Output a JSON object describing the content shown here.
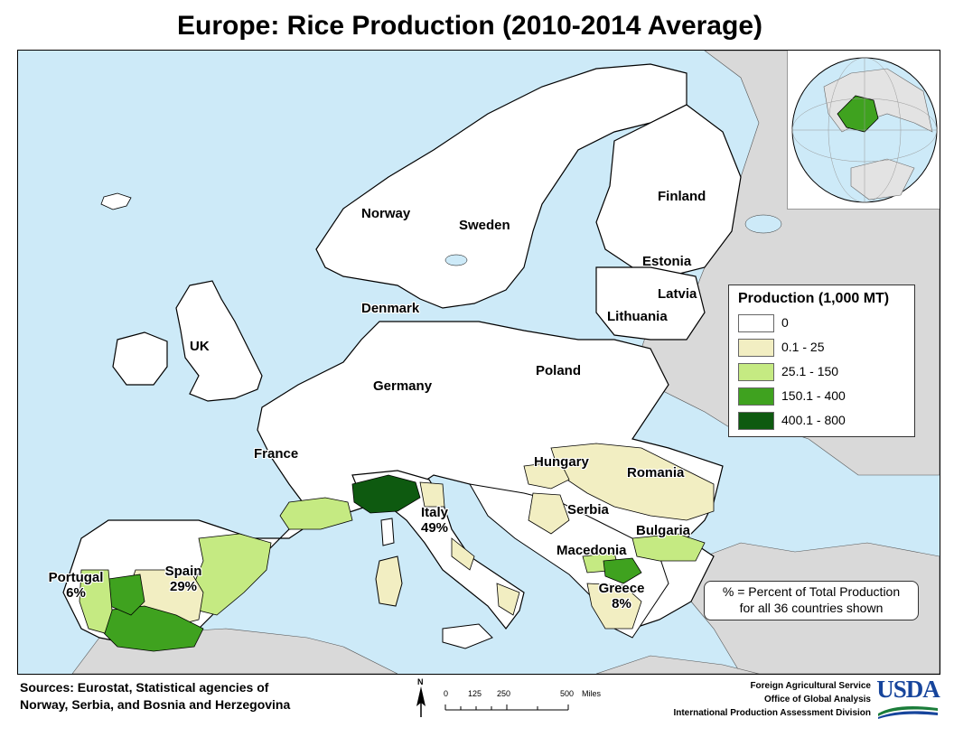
{
  "title": "Europe: Rice Production (2010-2014 Average)",
  "colors": {
    "sea": "#cdeaf8",
    "non_included_land": "#d9d9d9",
    "class_0": "#ffffff",
    "class_1": "#f2eec2",
    "class_2": "#c5ea82",
    "class_3": "#3fa21f",
    "class_4": "#0e5a10"
  },
  "legend": {
    "title": "Production (1,000 MT)",
    "classes": [
      {
        "label": "0",
        "color": "#ffffff"
      },
      {
        "label": "0.1 - 25",
        "color": "#f2eec2"
      },
      {
        "label": "25.1 - 150",
        "color": "#c5ea82"
      },
      {
        "label": "150.1 - 400",
        "color": "#3fa21f"
      },
      {
        "label": "400.1 - 800",
        "color": "#0e5a10"
      }
    ]
  },
  "countries": {
    "norway": "Norway",
    "sweden": "Sweden",
    "finland": "Finland",
    "estonia": "Estonia",
    "latvia": "Latvia",
    "lithuania": "Lithuania",
    "denmark": "Denmark",
    "uk": "UK",
    "poland": "Poland",
    "germany": "Germany",
    "france": "France",
    "hungary": "Hungary",
    "romania": "Romania",
    "serbia": "Serbia",
    "bulgaria": "Bulgaria",
    "macedonia": "Macedonia",
    "italy": "Italy",
    "spain": "Spain",
    "portugal": "Portugal",
    "greece": "Greece"
  },
  "shares": {
    "italy": "49%",
    "spain": "29%",
    "portugal": "6%",
    "greece": "8%"
  },
  "note": {
    "line1": "% = Percent of Total Production",
    "line2": "for all 36 countries shown"
  },
  "sources": {
    "line1": "Sources: Eurostat, Statistical agencies of",
    "line2": "Norway, Serbia, and Bosnia and Herzegovina"
  },
  "scale": {
    "north": "N",
    "ticks": [
      "0",
      "125",
      "250",
      "500"
    ],
    "unit": "Miles"
  },
  "credits": {
    "line1": "Foreign Agricultural Service",
    "line2": "Office of Global Analysis",
    "line3": "International Production Assessment Division"
  },
  "logo": "USDA"
}
